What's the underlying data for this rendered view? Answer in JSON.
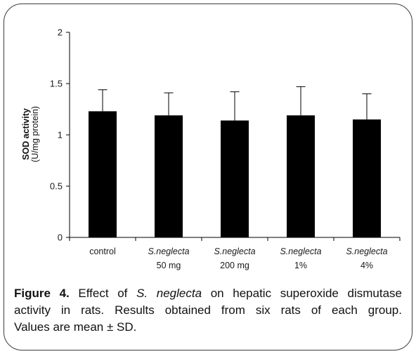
{
  "chart_data": {
    "type": "bar",
    "categories": [
      {
        "name": "control",
        "italic": false
      },
      {
        "name": "S.neglecta",
        "dose": "50 mg",
        "italic": true
      },
      {
        "name": "S.neglecta",
        "dose": "200 mg",
        "italic": true
      },
      {
        "name": "S.neglecta",
        "dose": "1%",
        "italic": true
      },
      {
        "name": "S.neglecta",
        "dose": "4%",
        "italic": true
      }
    ],
    "values": [
      1.23,
      1.19,
      1.14,
      1.19,
      1.15
    ],
    "error_sd": [
      0.21,
      0.22,
      0.28,
      0.28,
      0.25
    ],
    "ylabel": "SOD activity",
    "ylabel_unit": "(U/mg protein)",
    "ylim": [
      0,
      2
    ],
    "yticks": [
      0,
      0.5,
      1,
      1.5,
      2
    ],
    "grid": false,
    "legend": false,
    "bar_color": "#000000"
  },
  "caption": {
    "label": "Figure 4.",
    "text_before": "Effect of",
    "species": "S. neglecta",
    "text_after": "on hepatic superoxide dismutase",
    "line2": "activity in rats. Results obtained from six rats of each group.",
    "line3": "Values are mean ± SD."
  }
}
